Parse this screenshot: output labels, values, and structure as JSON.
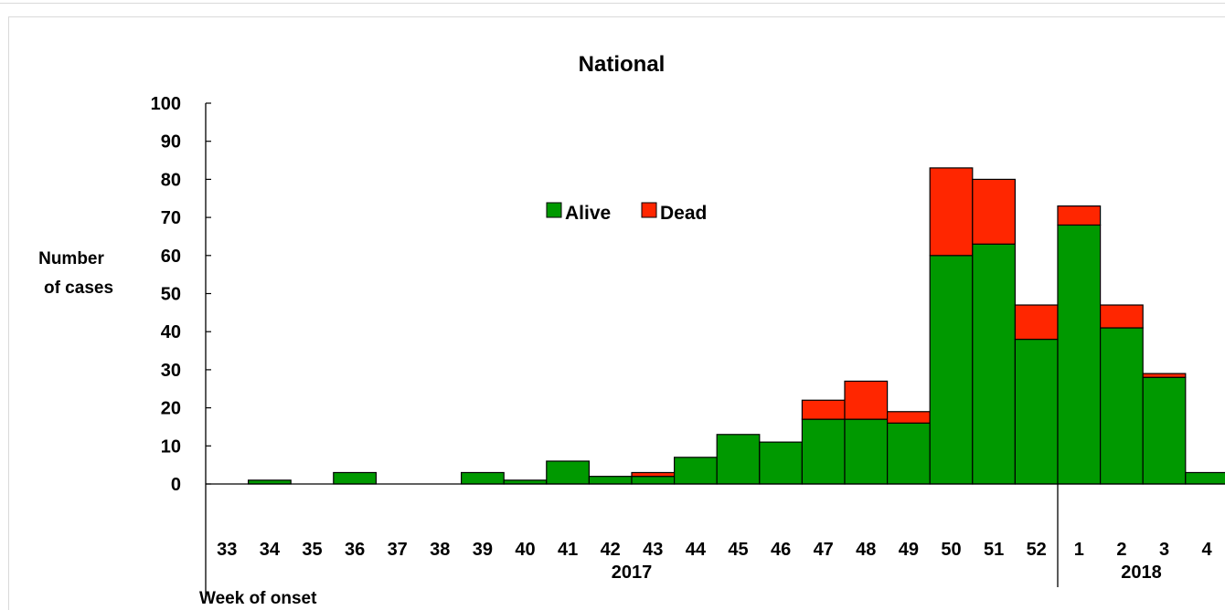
{
  "chart_data": {
    "type": "bar",
    "stacked": true,
    "title": "National",
    "ylabel_line1": "Number",
    "ylabel_line2": "of cases",
    "xlabel": "Week of onset",
    "ylim": [
      0,
      100
    ],
    "yticks": [
      0,
      10,
      20,
      30,
      40,
      50,
      60,
      70,
      80,
      90,
      100
    ],
    "categories": [
      "33",
      "34",
      "35",
      "36",
      "37",
      "38",
      "39",
      "40",
      "41",
      "42",
      "43",
      "44",
      "45",
      "46",
      "47",
      "48",
      "49",
      "50",
      "51",
      "52",
      "1",
      "2",
      "3",
      "4"
    ],
    "series": [
      {
        "name": "Alive",
        "color": "#009900",
        "values": [
          0,
          1,
          0,
          3,
          0,
          0,
          3,
          1,
          6,
          2,
          2,
          7,
          13,
          11,
          17,
          17,
          16,
          60,
          63,
          38,
          68,
          41,
          28,
          3
        ]
      },
      {
        "name": "Dead",
        "color": "#ff2600",
        "values": [
          0,
          0,
          0,
          0,
          0,
          0,
          0,
          0,
          0,
          0,
          1,
          0,
          0,
          0,
          5,
          10,
          3,
          23,
          17,
          9,
          5,
          6,
          1,
          0
        ]
      }
    ],
    "year_groups": [
      {
        "label": "2017",
        "count": 20
      },
      {
        "label": "2018",
        "count": 4
      }
    ],
    "legend_position": "top-center",
    "grid": false
  }
}
